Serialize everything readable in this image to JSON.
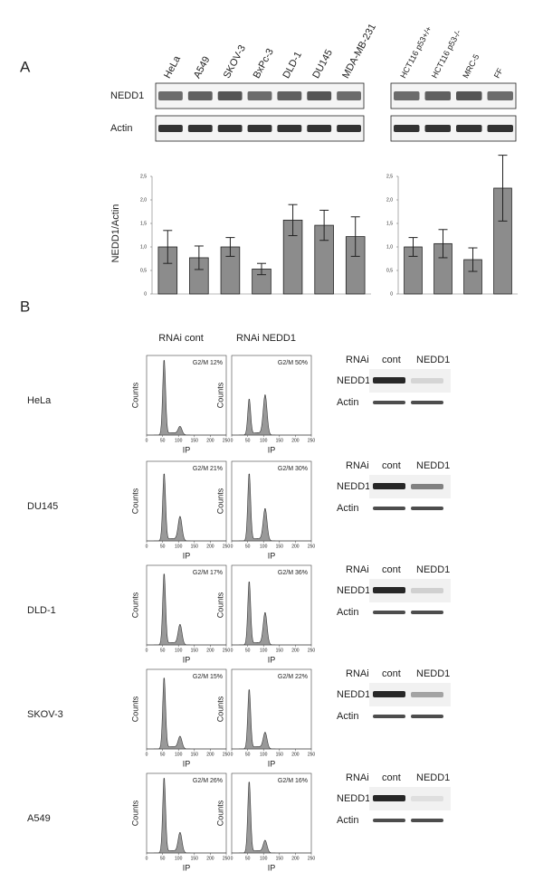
{
  "panel_a": {
    "label": "A",
    "blot_rows": [
      "NEDD1",
      "Actin"
    ]
  },
  "chart_data": [
    {
      "type": "bar",
      "ylabel": "NEDD1/Actin",
      "categories": [
        "HeLa",
        "A549",
        "SKOV-3",
        "BxPc-3",
        "DLD-1",
        "DU145",
        "MDA-MB-231"
      ],
      "values": [
        1.0,
        0.77,
        1.0,
        0.53,
        1.57,
        1.46,
        1.22
      ],
      "errors": [
        0.35,
        0.25,
        0.2,
        0.12,
        0.33,
        0.32,
        0.42
      ],
      "color": "#8c8c8c",
      "ylim": [
        0,
        2.5
      ],
      "yticks": [
        0,
        {
          "value": 0.5,
          "label": "0,5"
        },
        {
          "value": 1,
          "label": "1,0"
        },
        {
          "value": 1.5,
          "label": "1,5"
        },
        {
          "value": 2,
          "label": "2,0"
        },
        {
          "value": 2.5,
          "label": "2,5"
        }
      ]
    },
    {
      "type": "bar",
      "categories": [
        "HCT116 p53+/+",
        "HCT116 p53-/-",
        "MRC-5",
        "FF"
      ],
      "values": [
        1.0,
        1.07,
        0.73,
        2.25
      ],
      "errors": [
        0.2,
        0.3,
        0.25,
        0.7
      ],
      "color": "#8c8c8c",
      "ylim": [
        0,
        2.5
      ],
      "yticks": [
        0,
        {
          "value": 0.5,
          "label": "0,5"
        },
        {
          "value": 1,
          "label": "1,0"
        },
        {
          "value": 1.5,
          "label": "1,5"
        },
        {
          "value": 2,
          "label": "2,0"
        },
        {
          "value": 2.5,
          "label": "2,5"
        }
      ]
    }
  ],
  "panel_b": {
    "label": "B",
    "columns": [
      "RNAi cont",
      "RNAi NEDD1"
    ],
    "ylabel": "Counts",
    "xlabel": "IP",
    "xticks": [
      0,
      50,
      100,
      150,
      200,
      250
    ],
    "blot_header": [
      "RNAi",
      "cont",
      "NEDD1"
    ],
    "blot_rows": [
      "NEDD1",
      "Actin"
    ],
    "rows": [
      {
        "cell": "HeLa",
        "g2m": [
          "G2/M 12%",
          "G2/M 50%"
        ]
      },
      {
        "cell": "DU145",
        "g2m": [
          "G2/M 21%",
          "G2/M 30%"
        ]
      },
      {
        "cell": "DLD-1",
        "g2m": [
          "G2/M 17%",
          "G2/M 36%"
        ]
      },
      {
        "cell": "SKOV-3",
        "g2m": [
          "G2/M 15%",
          "G2/M 22%"
        ]
      },
      {
        "cell": "A549",
        "g2m": [
          "G2/M 26%",
          "G2/M 16%"
        ]
      }
    ]
  }
}
